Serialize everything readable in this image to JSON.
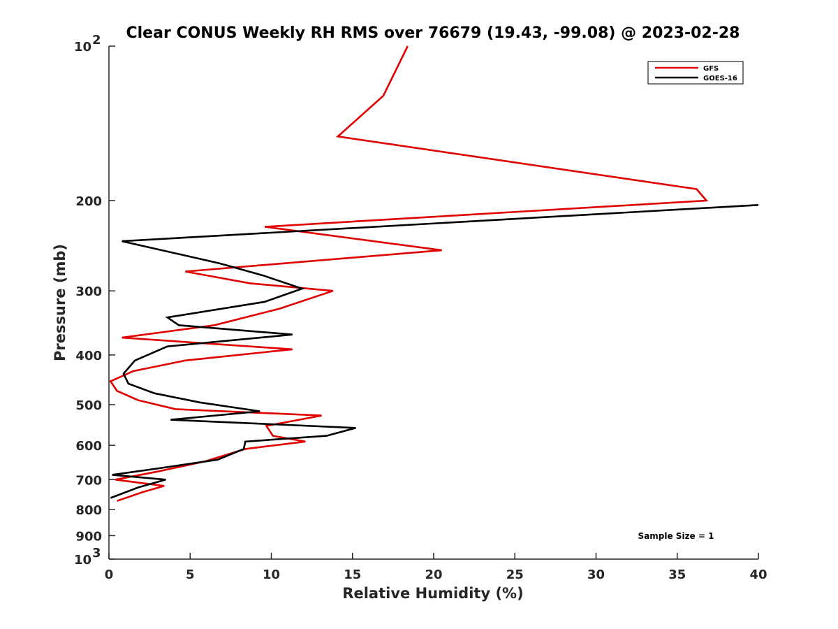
{
  "chart_data": {
    "type": "line",
    "title": "Clear CONUS Weekly RH RMS over 76679 (19.43, -99.08) @ 2023-02-28",
    "xlabel": "Relative Humidity (%)",
    "ylabel": "Pressure (mb)",
    "xlim": [
      0,
      40
    ],
    "ylim": [
      100,
      1000
    ],
    "y_scale": "log",
    "y_reversed": true,
    "x_ticks": [
      "0",
      "5",
      "10",
      "15",
      "20",
      "25",
      "30",
      "35",
      "40"
    ],
    "y_ticks": [
      {
        "value": 100,
        "base": "10",
        "exp": "2"
      },
      {
        "value": 200,
        "label": "200"
      },
      {
        "value": 300,
        "label": "300"
      },
      {
        "value": 400,
        "label": "400"
      },
      {
        "value": 500,
        "label": "500"
      },
      {
        "value": 600,
        "label": "600"
      },
      {
        "value": 700,
        "label": "700"
      },
      {
        "value": 800,
        "label": "800"
      },
      {
        "value": 900,
        "label": "900"
      },
      {
        "value": 1000,
        "base": "10",
        "exp": "3"
      }
    ],
    "grid": false,
    "legend_position": "top-right",
    "annotation": "Sample Size = 1",
    "series": [
      {
        "name": "GFS",
        "color": "#e00000",
        "points": [
          [
            18.4,
            100
          ],
          [
            16.9,
            125
          ],
          [
            14.1,
            150
          ],
          [
            36.2,
            190
          ],
          [
            36.8,
            200
          ],
          [
            9.6,
            225
          ],
          [
            20.5,
            250
          ],
          [
            4.7,
            275
          ],
          [
            8.7,
            290
          ],
          [
            13.8,
            300
          ],
          [
            10.5,
            325
          ],
          [
            6.5,
            350
          ],
          [
            0.8,
            370
          ],
          [
            11.3,
            390
          ],
          [
            4.7,
            410
          ],
          [
            1.5,
            430
          ],
          [
            0.1,
            450
          ],
          [
            0.5,
            470
          ],
          [
            1.8,
            490
          ],
          [
            4.1,
            510
          ],
          [
            13.1,
            525
          ],
          [
            9.7,
            550
          ],
          [
            10.1,
            575
          ],
          [
            12.1,
            590
          ],
          [
            8.4,
            610
          ],
          [
            5.9,
            645
          ],
          [
            3.0,
            675
          ],
          [
            0.4,
            700
          ],
          [
            3.4,
            720
          ],
          [
            2.1,
            740
          ],
          [
            0.5,
            770
          ]
        ]
      },
      {
        "name": "GOES-16",
        "color": "#000000",
        "points": [
          [
            40.0,
            204
          ],
          [
            0.8,
            240
          ],
          [
            6.8,
            265
          ],
          [
            9.5,
            280
          ],
          [
            11.9,
            297
          ],
          [
            9.6,
            315
          ],
          [
            3.6,
            338
          ],
          [
            4.3,
            350
          ],
          [
            11.3,
            365
          ],
          [
            3.6,
            385
          ],
          [
            1.6,
            410
          ],
          [
            0.9,
            435
          ],
          [
            1.2,
            455
          ],
          [
            2.8,
            475
          ],
          [
            5.6,
            495
          ],
          [
            9.3,
            515
          ],
          [
            3.8,
            535
          ],
          [
            15.2,
            555
          ],
          [
            13.4,
            575
          ],
          [
            8.4,
            590
          ],
          [
            8.3,
            610
          ],
          [
            6.7,
            640
          ],
          [
            3.1,
            665
          ],
          [
            0.2,
            685
          ],
          [
            3.5,
            700
          ],
          [
            1.8,
            725
          ],
          [
            0.1,
            760
          ]
        ]
      }
    ]
  }
}
